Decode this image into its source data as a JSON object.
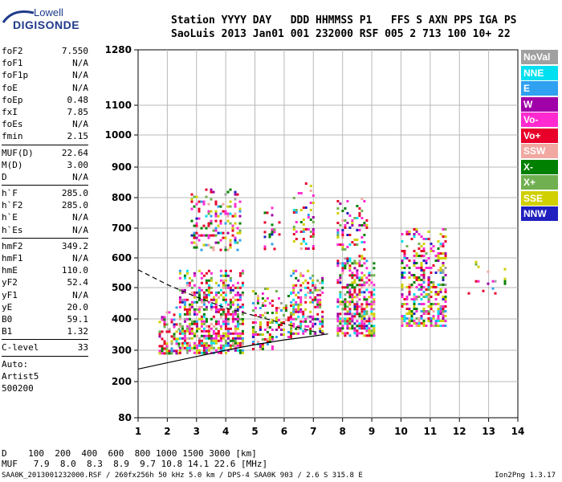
{
  "logo": {
    "top_text": "Lowell",
    "bottom_text": "DIGISONDE"
  },
  "header": {
    "line1": "Station YYYY DAY   DDD HHMMSS P1   FFS S AXN PPS IGA PS",
    "line2": "SaoLuis 2013 Jan01 001 232000 RSF 005 2 713 100 10+ 22"
  },
  "params_group1": [
    {
      "name": "foF2",
      "value": "7.550"
    },
    {
      "name": "foF1",
      "value": "N/A"
    },
    {
      "name": "foF1p",
      "value": "N/A"
    },
    {
      "name": "foE",
      "value": "N/A"
    },
    {
      "name": "foEp",
      "value": "0.48"
    },
    {
      "name": "fxI",
      "value": "7.85"
    },
    {
      "name": "foEs",
      "value": "N/A"
    },
    {
      "name": "fmin",
      "value": "2.15"
    }
  ],
  "params_group2": [
    {
      "name": "MUF(D)",
      "value": "22.64"
    },
    {
      "name": "M(D)",
      "value": "3.00"
    },
    {
      "name": "D",
      "value": "N/A"
    }
  ],
  "params_group3": [
    {
      "name": "h`F",
      "value": "285.0"
    },
    {
      "name": "h`F2",
      "value": "285.0"
    },
    {
      "name": "h`E",
      "value": "N/A"
    },
    {
      "name": "h`Es",
      "value": "N/A"
    }
  ],
  "params_group4": [
    {
      "name": "hmF2",
      "value": "349.2"
    },
    {
      "name": "hmF1",
      "value": "N/A"
    },
    {
      "name": "hmE",
      "value": "110.0"
    },
    {
      "name": "yF2",
      "value": "52.4"
    },
    {
      "name": "yF1",
      "value": "N/A"
    },
    {
      "name": "yE",
      "value": "20.0"
    },
    {
      "name": "B0",
      "value": "59.1"
    },
    {
      "name": "B1",
      "value": "1.32"
    }
  ],
  "params_group5": [
    {
      "name": "C-level",
      "value": "33"
    }
  ],
  "autoscale": {
    "line1": "Auto:",
    "line2": "Artist5",
    "line3": "500200"
  },
  "legend": [
    {
      "label": "NoVal",
      "color": "#a0a0a0"
    },
    {
      "label": "NNE",
      "color": "#00e0f0"
    },
    {
      "label": "E",
      "color": "#30a0f0"
    },
    {
      "label": "W",
      "color": "#a000a8"
    },
    {
      "label": "Vo-",
      "color": "#ff2ad0"
    },
    {
      "label": "Vo+",
      "color": "#e8002a"
    },
    {
      "label": "SSW",
      "color": "#f0a8a0"
    },
    {
      "label": "X-",
      "color": "#008000"
    },
    {
      "label": "X+",
      "color": "#70b050"
    },
    {
      "label": "SSE",
      "color": "#d0d000"
    },
    {
      "label": "NNW",
      "color": "#2020c0"
    }
  ],
  "footer": {
    "d_row": "D    100  200  400  600  800 1000 1500 3000 [km]",
    "muf_row": "MUF   7.9  8.0  8.3  8.9  9.7 10.8 14.1 22.6 [MHz]",
    "file_info": "SAA0K_2013001232000.RSF / 260fx256h 50 kHz 5.0 km / DPS-4 SAA0K 903 / 2.6 S 315.8 E",
    "version": "Ion2Png 1.3.17"
  },
  "chart_data": {
    "type": "scatter",
    "title": "",
    "xlabel": "",
    "ylabel": "",
    "xlim": [
      1,
      14
    ],
    "ylim": [
      80,
      1280
    ],
    "y_scale": "nonlinear (ionogram virtual height)",
    "x_ticks": [
      1,
      2,
      3,
      4,
      5,
      6,
      7,
      8,
      9,
      10,
      11,
      12,
      13,
      14
    ],
    "y_ticks": [
      80,
      200,
      300,
      400,
      500,
      600,
      700,
      800,
      900,
      1000,
      1100,
      1280
    ],
    "grid": true,
    "legend_position": "right",
    "echo_regions": [
      {
        "f_min": 1.7,
        "f_max": 2.4,
        "h_min": 290,
        "h_max": 440,
        "density": 0.55
      },
      {
        "f_min": 2.4,
        "f_max": 4.6,
        "h_min": 290,
        "h_max": 560,
        "density": 0.7
      },
      {
        "f_min": 2.8,
        "f_max": 4.5,
        "h_min": 630,
        "h_max": 830,
        "density": 0.35
      },
      {
        "f_min": 4.9,
        "f_max": 5.6,
        "h_min": 300,
        "h_max": 500,
        "density": 0.5
      },
      {
        "f_min": 5.7,
        "f_max": 6.2,
        "h_min": 340,
        "h_max": 500,
        "density": 0.45
      },
      {
        "f_min": 5.3,
        "f_max": 5.8,
        "h_min": 630,
        "h_max": 770,
        "density": 0.25
      },
      {
        "f_min": 6.2,
        "f_max": 7.3,
        "h_min": 350,
        "h_max": 560,
        "density": 0.55
      },
      {
        "f_min": 6.3,
        "f_max": 7.0,
        "h_min": 630,
        "h_max": 850,
        "density": 0.3
      },
      {
        "f_min": 7.8,
        "f_max": 9.1,
        "h_min": 350,
        "h_max": 610,
        "density": 0.7
      },
      {
        "f_min": 7.8,
        "f_max": 8.8,
        "h_min": 630,
        "h_max": 800,
        "density": 0.3
      },
      {
        "f_min": 10.0,
        "f_max": 11.5,
        "h_min": 380,
        "h_max": 700,
        "density": 0.5
      },
      {
        "f_min": 12.2,
        "f_max": 13.6,
        "h_min": 480,
        "h_max": 590,
        "density": 0.1
      }
    ],
    "profile_curve": [
      [
        1.0,
        240
      ],
      [
        2.0,
        260
      ],
      [
        3.0,
        280
      ],
      [
        4.0,
        300
      ],
      [
        5.0,
        318
      ],
      [
        6.0,
        333
      ],
      [
        7.0,
        345
      ],
      [
        7.5,
        352
      ]
    ],
    "dashed_trace": [
      [
        1.0,
        560
      ],
      [
        2.0,
        510
      ],
      [
        3.0,
        470
      ],
      [
        4.0,
        435
      ],
      [
        5.0,
        410
      ],
      [
        6.0,
        385
      ],
      [
        7.0,
        360
      ],
      [
        7.5,
        352
      ]
    ]
  }
}
